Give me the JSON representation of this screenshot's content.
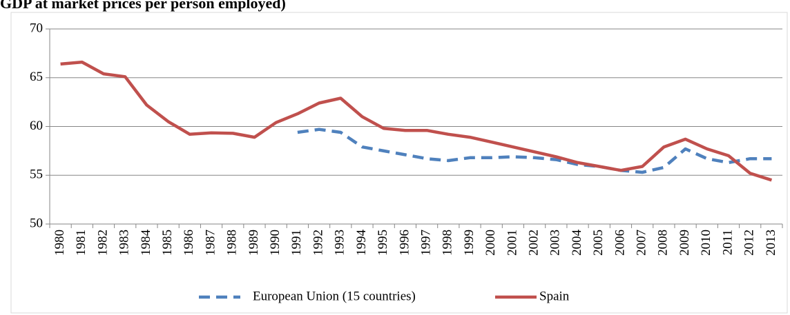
{
  "chart_data": {
    "type": "line",
    "title": "GDP at market prices per person employed)",
    "categories": [
      "1980",
      "1981",
      "1982",
      "1983",
      "1984",
      "1985",
      "1986",
      "1987",
      "1988",
      "1989",
      "1990",
      "1991",
      "1992",
      "1993",
      "1994",
      "1995",
      "1996",
      "1997",
      "1998",
      "1999",
      "2000",
      "2001",
      "2002",
      "2003",
      "2004",
      "2005",
      "2006",
      "2007",
      "2008",
      "2009",
      "2010",
      "2011",
      "2012",
      "2013"
    ],
    "series": [
      {
        "name": "European Union (15 countries)",
        "color": "#4f81bd",
        "line_style": "dashed",
        "values": [
          null,
          null,
          null,
          null,
          null,
          null,
          null,
          null,
          null,
          null,
          null,
          59.4,
          59.7,
          59.4,
          57.9,
          57.5,
          57.1,
          56.7,
          56.5,
          56.8,
          56.8,
          56.9,
          56.8,
          56.6,
          56.1,
          55.9,
          55.5,
          55.3,
          55.8,
          57.7,
          56.7,
          56.3,
          56.7,
          56.7
        ]
      },
      {
        "name": "Spain",
        "color": "#c0504d",
        "line_style": "solid",
        "values": [
          66.4,
          66.6,
          65.4,
          65.1,
          62.2,
          60.5,
          59.2,
          59.35,
          59.3,
          58.9,
          60.4,
          61.3,
          62.4,
          62.9,
          61.0,
          59.8,
          59.6,
          59.6,
          59.2,
          58.9,
          58.4,
          57.9,
          57.4,
          56.9,
          56.3,
          55.9,
          55.5,
          55.9,
          57.9,
          58.7,
          57.7,
          57.0,
          55.2,
          54.5
        ]
      }
    ],
    "ylim": [
      50,
      70
    ],
    "yticks": [
      50,
      55,
      60,
      65,
      70
    ],
    "grid": true,
    "legend": "bottom"
  }
}
